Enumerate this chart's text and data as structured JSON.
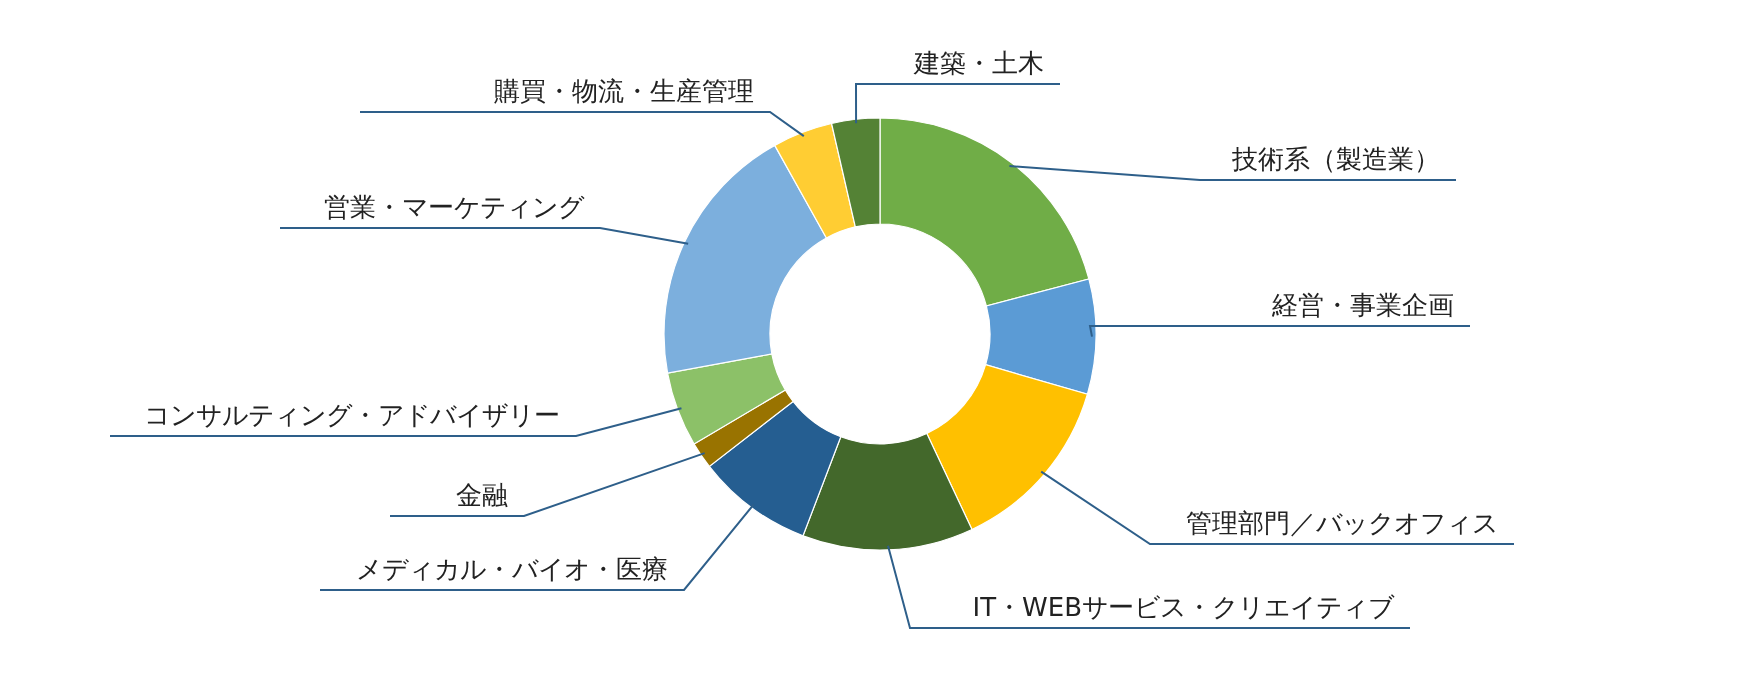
{
  "chart_data": {
    "type": "donut",
    "categories": [
      "技術系（製造業）",
      "経営・事業企画",
      "管理部門／バックオフィス",
      "IT・WEBサービス・クリエイティブ",
      "メディカル・バイオ・医療",
      "金融",
      "コンサルティング・アドバイザリー",
      "営業・マーケティング",
      "購買・物流・生産管理",
      "建築・土木"
    ],
    "values": [
      20.9,
      8.6,
      13.5,
      12.8,
      8.7,
      2.0,
      5.6,
      19.8,
      4.5,
      3.6
    ],
    "colors": [
      "#70ad47",
      "#5b9bd5",
      "#ffc000",
      "#43682b",
      "#255e91",
      "#997300",
      "#8cc168",
      "#7cafdd",
      "#ffcd33",
      "#548235"
    ]
  }
}
